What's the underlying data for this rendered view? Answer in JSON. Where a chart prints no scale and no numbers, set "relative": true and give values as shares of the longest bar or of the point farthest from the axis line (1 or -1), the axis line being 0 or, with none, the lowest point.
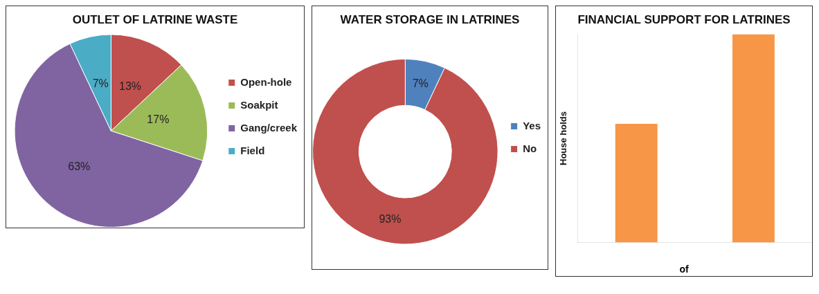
{
  "chart_data": [
    {
      "type": "pie",
      "title": "OUTLET OF LATRINE WASTE",
      "categories": [
        "Open-hole",
        "Soakpit",
        "Gang/creek",
        "Field"
      ],
      "values": [
        13,
        17,
        63,
        7
      ],
      "colors": [
        "#c0504d",
        "#9bbb59",
        "#8064a2",
        "#4bacc6"
      ],
      "value_labels": [
        "13%",
        "17%",
        "63%",
        "7%"
      ],
      "legend": "right"
    },
    {
      "type": "donut",
      "title": "WATER STORAGE IN LATRINES",
      "categories": [
        "Yes",
        "No"
      ],
      "values": [
        7,
        93
      ],
      "colors": [
        "#4f81bd",
        "#c0504d"
      ],
      "value_labels": [
        "7%",
        "93%"
      ],
      "legend": "right"
    },
    {
      "type": "bar",
      "title": "FINANCIAL SUPPORT FOR LATRINES",
      "ylabel": "House holds",
      "categories": [
        null,
        null
      ],
      "values": [
        0.57,
        1
      ],
      "color": "#f79646",
      "relative": true,
      "annotations": [
        "of"
      ]
    }
  ]
}
